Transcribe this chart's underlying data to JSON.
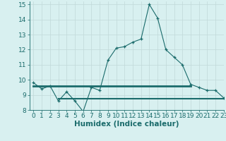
{
  "xlabel": "Humidex (Indice chaleur)",
  "xlim": [
    -0.5,
    23
  ],
  "ylim": [
    8,
    15.2
  ],
  "yticks": [
    8,
    9,
    10,
    11,
    12,
    13,
    14,
    15
  ],
  "xticks": [
    0,
    1,
    2,
    3,
    4,
    5,
    6,
    7,
    8,
    9,
    10,
    11,
    12,
    13,
    14,
    15,
    16,
    17,
    18,
    19,
    20,
    21,
    22,
    23
  ],
  "line1_x": [
    0,
    1,
    2,
    3,
    4,
    5,
    6,
    7,
    8,
    9,
    10,
    11,
    12,
    13,
    14,
    15,
    16,
    17,
    18,
    19,
    20,
    21,
    22,
    23
  ],
  "line1_y": [
    9.8,
    9.4,
    9.6,
    8.6,
    9.2,
    8.6,
    7.9,
    9.5,
    9.3,
    11.3,
    12.1,
    12.2,
    12.5,
    12.7,
    15.0,
    14.1,
    12.0,
    11.5,
    11.0,
    9.7,
    9.5,
    9.3,
    9.3,
    8.8
  ],
  "line2_x": [
    0,
    19
  ],
  "line2_y": [
    9.6,
    9.6
  ],
  "line3_x": [
    3,
    23
  ],
  "line3_y": [
    8.75,
    8.75
  ],
  "line_color": "#1a6b6b",
  "bg_color": "#d8f0f0",
  "grid_color": "#c0d8d8",
  "tick_fontsize": 6.5,
  "label_fontsize": 7.5,
  "label_fontweight": "bold"
}
